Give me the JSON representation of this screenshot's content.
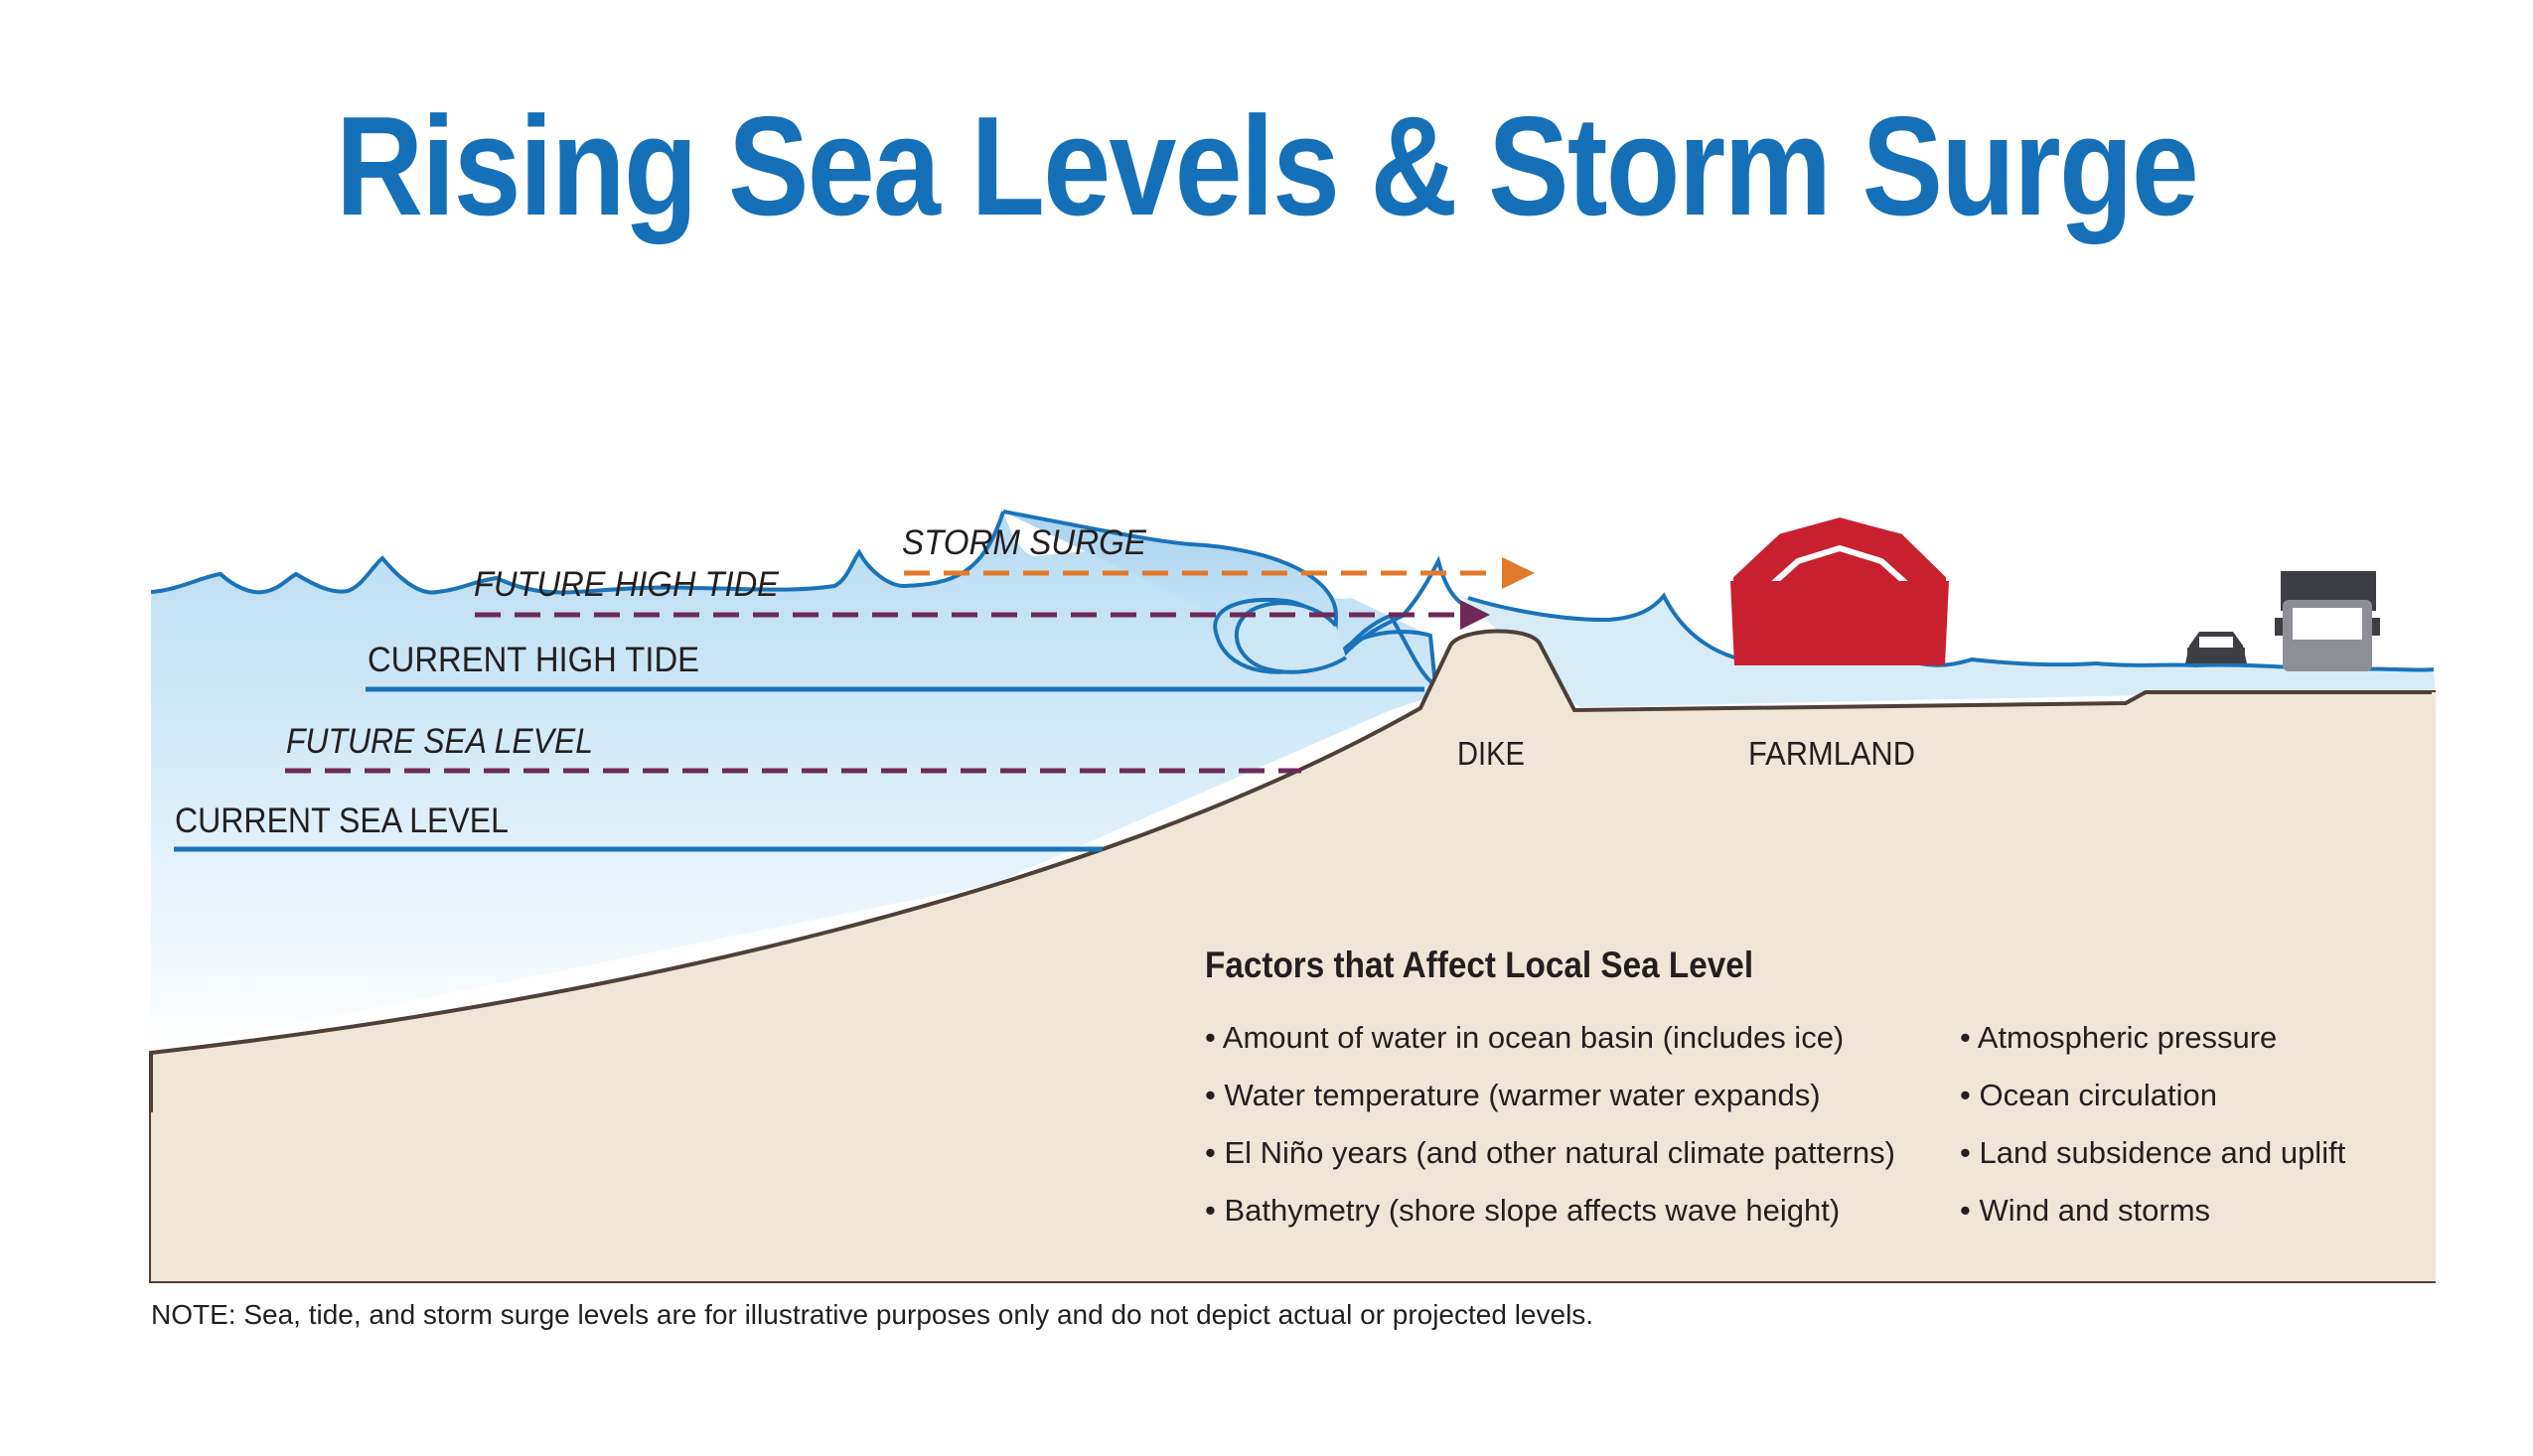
{
  "title": "Rising Sea Levels & Storm Surge",
  "labels": {
    "storm_surge": "STORM SURGE",
    "future_high_tide": "FUTURE HIGH TIDE",
    "current_high_tide": "CURRENT HIGH TIDE",
    "future_sea_level": "FUTURE SEA LEVEL",
    "current_sea_level": "CURRENT SEA LEVEL",
    "dike": "DIKE",
    "farmland": "FARMLAND"
  },
  "factors": {
    "heading": "Factors that Affect Local Sea Level",
    "left": [
      "Amount of water in ocean basin (includes ice)",
      "Water temperature (warmer water expands)",
      "El Niño years (and other natural climate patterns)",
      "Bathymetry (shore slope affects wave height)"
    ],
    "right": [
      "Atmospheric pressure",
      "Ocean circulation",
      "Land subsidence and uplift",
      "Wind and storms"
    ]
  },
  "note": "NOTE: Sea, tide, and storm surge levels are for illustrative purposes only and do not depict actual or projected levels.",
  "colors": {
    "title": "#1570b8",
    "water_line": "#1a73b9",
    "future_line": "#6d2a59",
    "surge_arrow": "#e07a2a",
    "land": "#efe6d8",
    "barn": "#c8202f"
  }
}
